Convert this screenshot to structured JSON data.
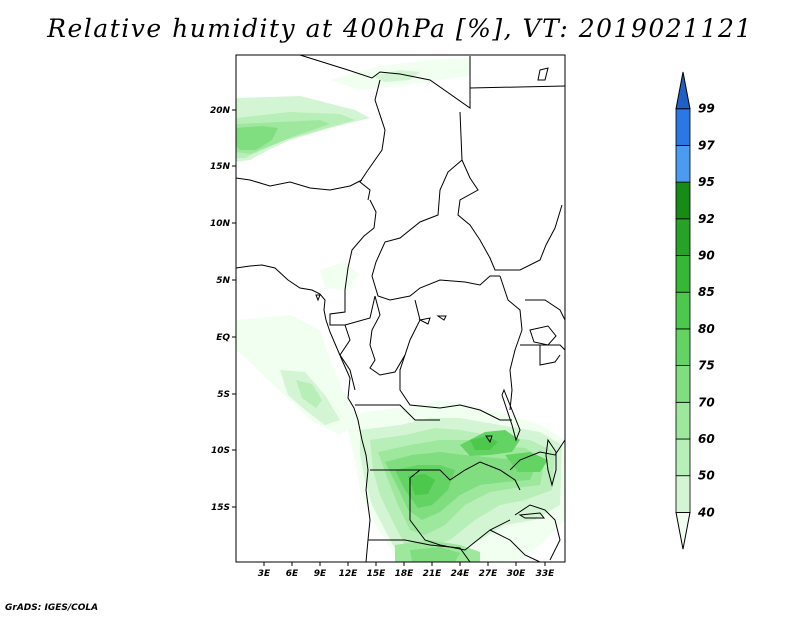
{
  "title": "Relative humidity at 400hPa [%], VT: 2019021121",
  "credit": "GrADS: IGES/COLA",
  "map": {
    "lon_range": [
      0,
      35
    ],
    "lat_range": [
      -20,
      25
    ],
    "lat_ticks": [
      "20N",
      "15N",
      "10N",
      "5N",
      "EQ",
      "5S",
      "10S",
      "15S"
    ],
    "lon_ticks": [
      "3E",
      "6E",
      "9E",
      "12E",
      "15E",
      "18E",
      "21E",
      "24E",
      "27E",
      "30E",
      "33E"
    ]
  },
  "colorbar": {
    "levels": [
      "40",
      "50",
      "60",
      "70",
      "75",
      "80",
      "85",
      "90",
      "92",
      "95",
      "97",
      "99"
    ],
    "colors": [
      "#f0fff0",
      "#d4f5d4",
      "#b8eeb8",
      "#9ee89e",
      "#80de80",
      "#63d463",
      "#4cc84c",
      "#35b835",
      "#26a226",
      "#168c16",
      "#4b9cf0",
      "#2a78e6",
      "#1e5fc8"
    ]
  },
  "chart_data": {
    "type": "heatmap",
    "title": "Relative humidity at 400hPa [%], VT: 2019021121",
    "variable_units": "%",
    "x_ticks": [
      "3E",
      "6E",
      "9E",
      "12E",
      "15E",
      "18E",
      "21E",
      "24E",
      "27E",
      "30E",
      "33E"
    ],
    "y_ticks": [
      "20N",
      "15N",
      "10N",
      "5N",
      "EQ",
      "5S",
      "10S",
      "15S"
    ],
    "legend_levels": [
      40,
      50,
      60,
      70,
      75,
      80,
      85,
      90,
      92,
      95,
      97,
      99
    ],
    "regions_above_40": [
      {
        "lon": [
          0,
          14
        ],
        "lat": [
          14,
          22
        ],
        "max_level": 75
      },
      {
        "lon": [
          0,
          10
        ],
        "lat": [
          -10,
          0
        ],
        "max_level": 60
      },
      {
        "lon": [
          12,
          24
        ],
        "lat": [
          -20,
          -10
        ],
        "max_level": 85
      },
      {
        "lon": [
          20,
          34
        ],
        "lat": [
          -17,
          -7
        ],
        "max_level": 85
      },
      {
        "lon": [
          20,
          32
        ],
        "lat": [
          16,
          25
        ],
        "max_level": 50
      }
    ]
  }
}
